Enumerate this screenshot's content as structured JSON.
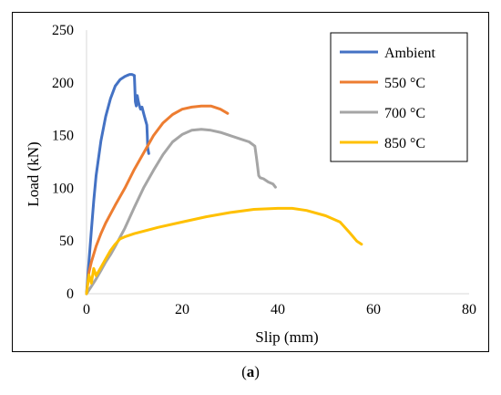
{
  "caption": {
    "open": "(",
    "letter": "a",
    "close": ")"
  },
  "chart_data": {
    "type": "line",
    "title": "",
    "xlabel": "Slip (mm)",
    "ylabel": "Load (kN)",
    "xlim": [
      0,
      80
    ],
    "ylim": [
      0,
      250
    ],
    "xticks": [
      0,
      20,
      40,
      60,
      80
    ],
    "yticks": [
      0,
      50,
      100,
      150,
      200,
      250
    ],
    "grid": false,
    "legend_position": "top-right",
    "series": [
      {
        "name": "Ambient",
        "color": "#4472c4",
        "x": [
          0,
          0.5,
          1,
          1.5,
          2,
          3,
          4,
          5,
          6,
          7,
          8,
          8.5,
          9,
          9.5,
          10,
          10.1,
          10.2,
          10.4,
          10.6,
          10.8,
          11,
          11.3,
          11.6,
          12,
          12.3,
          12.6,
          12.7,
          12.8,
          13
        ],
        "y": [
          0,
          30,
          60,
          88,
          112,
          145,
          168,
          185,
          197,
          203,
          206,
          207,
          208,
          208,
          207,
          196,
          182,
          178,
          188,
          183,
          179,
          175,
          177,
          170,
          165,
          160,
          150,
          138,
          133
        ]
      },
      {
        "name": "550 °C",
        "color": "#ed7d31",
        "x": [
          0,
          0.5,
          1,
          2,
          3,
          4,
          6,
          8,
          10,
          12,
          14,
          16,
          18,
          20,
          22,
          24,
          26,
          28,
          29.5
        ],
        "y": [
          0,
          20,
          30,
          45,
          57,
          67,
          84,
          100,
          118,
          134,
          150,
          162,
          170,
          175,
          177,
          178,
          178,
          175,
          171
        ]
      },
      {
        "name": "700 °C",
        "color": "#a5a5a5",
        "x": [
          0,
          1,
          2,
          3,
          4,
          5,
          6,
          8,
          10,
          12,
          14,
          16,
          18,
          20,
          22,
          24,
          26,
          28,
          30,
          32,
          34,
          35.2,
          35.5,
          35.8,
          36,
          36.3,
          37,
          38,
          39,
          39.5
        ],
        "y": [
          0,
          7,
          14,
          22,
          30,
          37,
          45,
          62,
          82,
          101,
          117,
          132,
          144,
          151,
          155,
          156,
          155,
          153,
          150,
          147,
          144,
          140,
          130,
          120,
          112,
          110,
          109,
          106,
          104,
          101
        ]
      },
      {
        "name": "850 °C",
        "color": "#ffc000",
        "x": [
          0,
          0.5,
          1,
          1.5,
          2,
          3,
          4,
          5,
          6,
          7,
          8,
          10,
          15,
          20,
          25,
          30,
          35,
          40,
          43,
          46,
          50,
          53,
          55,
          56.5,
          57.5
        ],
        "y": [
          0,
          18,
          10,
          24,
          17,
          25,
          33,
          41,
          47,
          52,
          54,
          57,
          63,
          68,
          73,
          77,
          80,
          81,
          81,
          79,
          74,
          68,
          58,
          50,
          47
        ]
      }
    ]
  }
}
